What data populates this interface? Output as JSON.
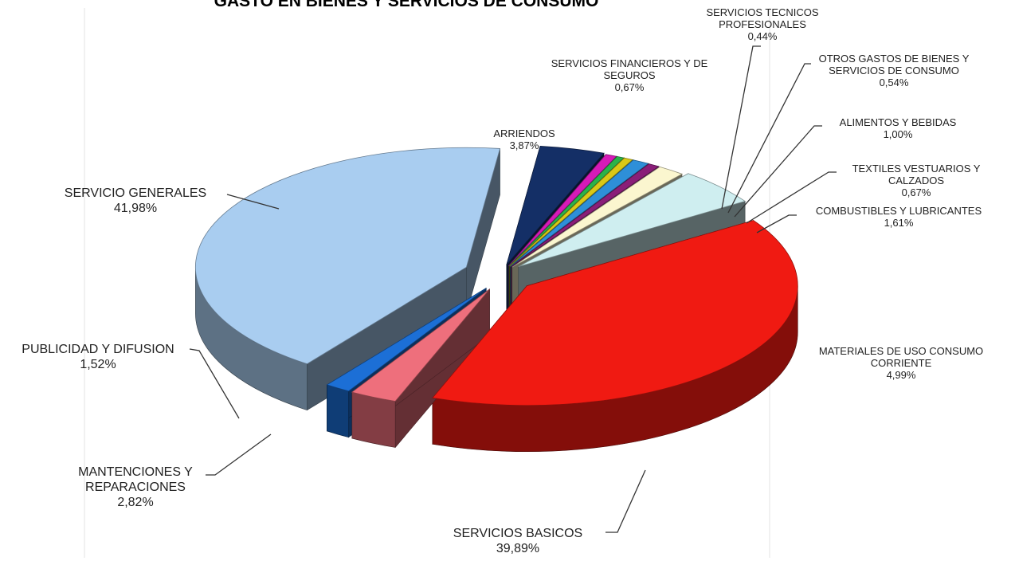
{
  "chart_data": {
    "type": "pie",
    "title": "GASTO EN BIENES Y SERVICIOS DE CONSUMO",
    "slices": [
      {
        "name": "SERVICIO GENERALES",
        "value": 41.98,
        "label": "41,98%",
        "color": "#a9cdf0"
      },
      {
        "name": "ARRIENDOS",
        "value": 3.87,
        "label": "3,87%",
        "color": "#142f66"
      },
      {
        "name": "SERVICIOS FINANCIEROS Y DE SEGUROS",
        "value": 0.67,
        "label": "0,67%",
        "color": "#d61ab8"
      },
      {
        "name": "SERVICIOS TECNICOS PROFESIONALES",
        "value": 0.44,
        "label": "0,44%",
        "color": "#2bb34a"
      },
      {
        "name": "OTROS GASTOS DE BIENES Y SERVICIOS DE CONSUMO",
        "value": 0.54,
        "label": "0,54%",
        "color": "#d9c817"
      },
      {
        "name": "ALIMENTOS Y BEBIDAS",
        "value": 1.0,
        "label": "1,00%",
        "color": "#2e8fd8"
      },
      {
        "name": "TEXTILES VESTUARIOS Y CALZADOS",
        "value": 0.67,
        "label": "0,67%",
        "color": "#8a1e78"
      },
      {
        "name": "COMBUSTIBLES Y LUBRICANTES",
        "value": 1.61,
        "label": "1,61%",
        "color": "#fbf6cf"
      },
      {
        "name": "MATERIALES DE USO CONSUMO CORRIENTE",
        "value": 4.99,
        "label": "4,99%",
        "color": "#cfeef0"
      },
      {
        "name": "SERVICIOS BASICOS",
        "value": 39.89,
        "label": "39,89%",
        "color": "#f01a12"
      },
      {
        "name": "MANTENCIONES Y REPARACIONES",
        "value": 2.82,
        "label": "2,82%",
        "color": "#ee6f7c"
      },
      {
        "name": "PUBLICIDAD Y DIFUSION",
        "value": 1.52,
        "label": "1,52%",
        "color": "#1c6fd6"
      }
    ],
    "labels": [
      {
        "lines": [
          "SERVICIO GENERALES",
          "41,98%"
        ]
      },
      {
        "lines": [
          "ARRIENDOS",
          "3,87%"
        ]
      },
      {
        "lines": [
          "SERVICIOS FINANCIEROS Y DE",
          "SEGUROS",
          "0,67%"
        ]
      },
      {
        "lines": [
          "SERVICIOS TECNICOS",
          "PROFESIONALES",
          "0,44%"
        ]
      },
      {
        "lines": [
          "OTROS GASTOS DE BIENES Y",
          "SERVICIOS DE CONSUMO",
          "0,54%"
        ]
      },
      {
        "lines": [
          "ALIMENTOS Y BEBIDAS",
          "1,00%"
        ]
      },
      {
        "lines": [
          "TEXTILES VESTUARIOS  Y",
          "CALZADOS",
          "0,67%"
        ]
      },
      {
        "lines": [
          "COMBUSTIBLES Y LUBRICANTES",
          "1,61%"
        ]
      },
      {
        "lines": [
          "MATERIALES DE USO CONSUMO",
          "CORRIENTE",
          "4,99%"
        ]
      },
      {
        "lines": [
          "SERVICIOS BASICOS",
          "39,89%"
        ]
      },
      {
        "lines": [
          "MANTENCIONES Y",
          "REPARACIONES",
          "2,82%"
        ]
      },
      {
        "lines": [
          "PUBLICIDAD Y DIFUSION",
          "1,52%"
        ]
      }
    ],
    "style": "3d-exploded",
    "legend": "none"
  }
}
